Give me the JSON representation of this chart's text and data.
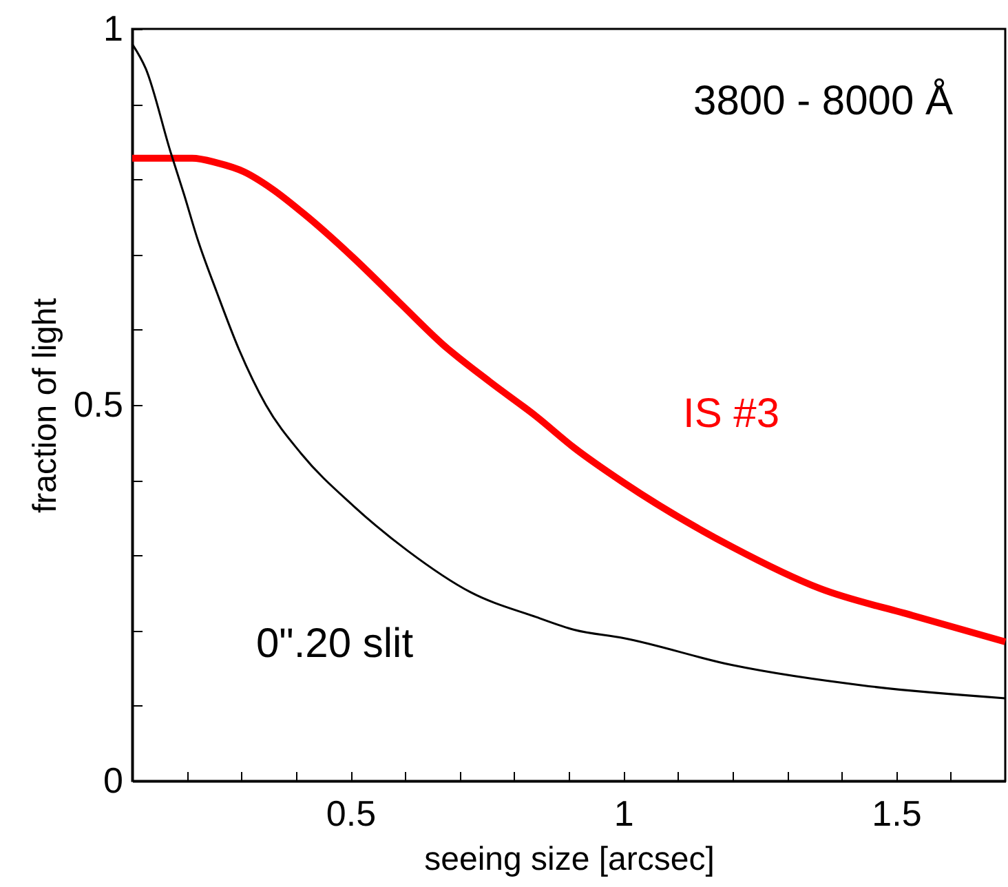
{
  "chart_data": {
    "type": "line",
    "xlabel": "seeing size [arcsec]",
    "ylabel": "fraction of light",
    "annotations": [
      "3800 - 8000 Å"
    ],
    "xlim": [
      0.1,
      1.7
    ],
    "ylim": [
      0,
      1
    ],
    "xticks": [
      {
        "value": 0.2,
        "label": null
      },
      {
        "value": 0.3,
        "label": null
      },
      {
        "value": 0.4,
        "label": null
      },
      0.5,
      {
        "value": 0.6,
        "label": null
      },
      {
        "value": 0.7,
        "label": null
      },
      {
        "value": 0.8,
        "label": null
      },
      {
        "value": 0.9,
        "label": null
      },
      1,
      {
        "value": 1.1,
        "label": null
      },
      {
        "value": 1.2,
        "label": null
      },
      {
        "value": 1.3,
        "label": null
      },
      {
        "value": 1.4,
        "label": null
      },
      1.5,
      {
        "value": 1.6,
        "label": null
      }
    ],
    "yticks": [
      0,
      {
        "value": 0.1,
        "label": null
      },
      {
        "value": 0.2,
        "label": null
      },
      {
        "value": 0.3,
        "label": null
      },
      {
        "value": 0.4,
        "label": null
      },
      0.5,
      {
        "value": 0.6,
        "label": null
      },
      {
        "value": 0.7,
        "label": null
      },
      {
        "value": 0.8,
        "label": null
      },
      {
        "value": 0.9,
        "label": null
      },
      1
    ],
    "grid": false,
    "marker": "none",
    "line_style": "solid",
    "series": [
      {
        "name": "IS #3",
        "color": "#ff0000",
        "x": [
          0.1,
          0.21,
          0.255,
          0.305,
          0.355,
          0.42,
          0.505,
          0.59,
          0.67,
          0.755,
          0.84,
          0.91,
          1.0,
          1.2,
          1.36,
          1.53,
          1.7
        ],
        "values": [
          0.828,
          0.828,
          0.822,
          0.81,
          0.788,
          0.751,
          0.696,
          0.636,
          0.58,
          0.531,
          0.485,
          0.443,
          0.397,
          0.311,
          0.256,
          0.22,
          0.185
        ]
      },
      {
        "name": "0\".20 slit",
        "color": "#000000",
        "x": [
          0.1,
          0.125,
          0.17,
          0.195,
          0.22,
          0.255,
          0.295,
          0.345,
          0.41,
          0.505,
          0.605,
          0.72,
          0.84,
          0.91,
          1.0,
          1.2,
          1.45,
          1.7
        ],
        "values": [
          0.98,
          0.947,
          0.837,
          0.78,
          0.72,
          0.65,
          0.575,
          0.5,
          0.435,
          0.366,
          0.306,
          0.251,
          0.218,
          0.201,
          0.19,
          0.154,
          0.126,
          0.11
        ]
      }
    ]
  }
}
